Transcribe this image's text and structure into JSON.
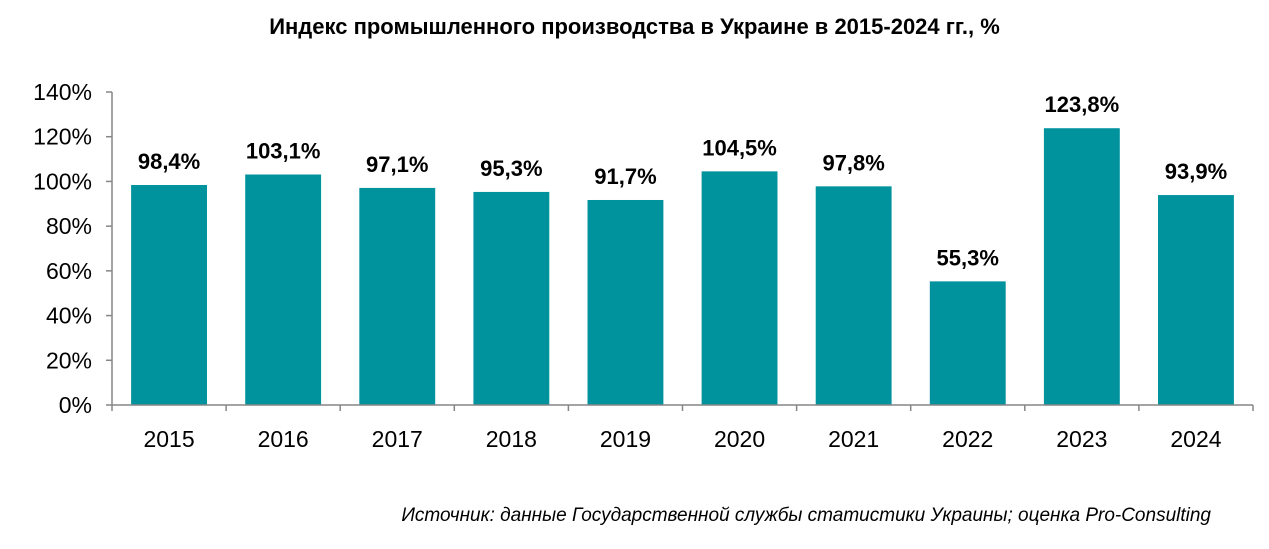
{
  "chart_data": {
    "type": "bar",
    "title": "Индекс промышленного производства в Украине в 2015-2024 гг., %",
    "categories": [
      "2015",
      "2016",
      "2017",
      "2018",
      "2019",
      "2020",
      "2021",
      "2022",
      "2023",
      "2024"
    ],
    "values": [
      98.4,
      103.1,
      97.1,
      95.3,
      91.7,
      104.5,
      97.8,
      55.3,
      123.8,
      93.9
    ],
    "value_labels": [
      "98,4%",
      "103,1%",
      "97,1%",
      "95,3%",
      "91,7%",
      "104,5%",
      "97,8%",
      "55,3%",
      "123,8%",
      "93,9%"
    ],
    "xlabel": "",
    "ylabel": "",
    "ylim": [
      0,
      140
    ],
    "yticks": [
      0,
      20,
      40,
      60,
      80,
      100,
      120,
      140
    ],
    "ytick_labels": [
      "0%",
      "20%",
      "40%",
      "60%",
      "80%",
      "100%",
      "120%",
      "140%"
    ],
    "grid": false,
    "legend": "none",
    "bar_color": "#00939e",
    "source": "Источник: данные Государственной службы статистики Украины; оценка Pro-Consulting"
  }
}
